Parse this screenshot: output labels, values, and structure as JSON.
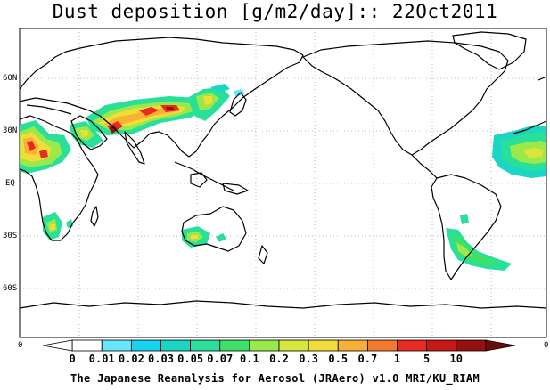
{
  "title": "Dust deposition [g/m2/day]:: 22Oct2011",
  "footer": "The Japanese Reanalysis for Aerosol (JRAero) v1.0 MRI/KU_RIAM",
  "y_axis_labels": [
    "60N",
    "30N",
    "EQ",
    "30S",
    "60S"
  ],
  "legend": {
    "left_end_label": "0",
    "right_end_label": "0",
    "tick_labels": [
      "0",
      "0.01",
      "0.02",
      "0.03",
      "0.05",
      "0.07",
      "0.1",
      "0.2",
      "0.3",
      "0.5",
      "0.7",
      "1",
      "5",
      "10"
    ],
    "colors": [
      "#ffffff",
      "#ffffff",
      "#66e6ff",
      "#16d3f0",
      "#1ad6c2",
      "#29e09a",
      "#3ee06a",
      "#9be84a",
      "#d6e63c",
      "#f2dc38",
      "#f7b236",
      "#f27a2e",
      "#e82a22",
      "#c81818",
      "#961010",
      "#6a0a0a"
    ]
  },
  "colors": {
    "coast": "#000000",
    "grid": "#a0a0a0"
  }
}
